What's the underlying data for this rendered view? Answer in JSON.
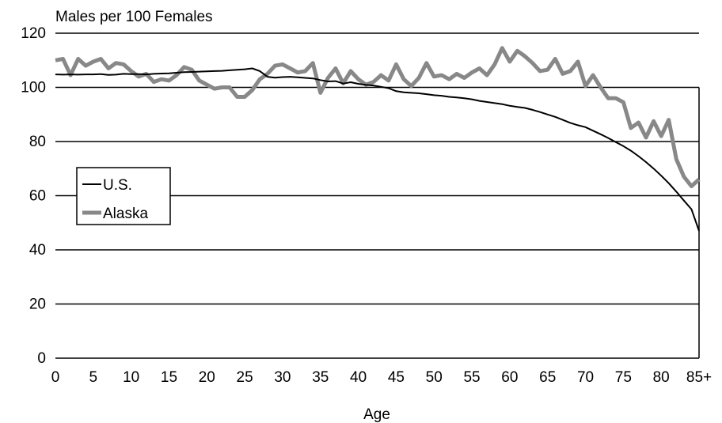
{
  "chart_data": {
    "type": "line",
    "title": "",
    "ylabel": "Males per 100 Females",
    "xlabel": "Age",
    "ylim": [
      0,
      120
    ],
    "yticks": [
      0,
      20,
      40,
      60,
      80,
      100,
      120
    ],
    "xticks": [
      "0",
      "5",
      "10",
      "15",
      "20",
      "25",
      "30",
      "35",
      "40",
      "45",
      "50",
      "55",
      "60",
      "65",
      "70",
      "75",
      "80",
      "85+"
    ],
    "grid": true,
    "legend": "left",
    "x": [
      0,
      1,
      2,
      3,
      4,
      5,
      6,
      7,
      8,
      9,
      10,
      11,
      12,
      13,
      14,
      15,
      16,
      17,
      18,
      19,
      20,
      21,
      22,
      23,
      24,
      25,
      26,
      27,
      28,
      29,
      30,
      31,
      32,
      33,
      34,
      35,
      36,
      37,
      38,
      39,
      40,
      41,
      42,
      43,
      44,
      45,
      46,
      47,
      48,
      49,
      50,
      51,
      52,
      53,
      54,
      55,
      56,
      57,
      58,
      59,
      60,
      61,
      62,
      63,
      64,
      65,
      66,
      67,
      68,
      69,
      70,
      71,
      72,
      73,
      74,
      75,
      76,
      77,
      78,
      79,
      80,
      81,
      82,
      83,
      84,
      85
    ],
    "series": [
      {
        "name": "U.S.",
        "color": "#000000",
        "values": [
          104.8,
          104.7,
          104.8,
          104.7,
          104.8,
          104.8,
          104.9,
          104.6,
          104.7,
          105.0,
          104.9,
          104.9,
          104.8,
          105.0,
          105.1,
          105.2,
          105.4,
          105.6,
          105.7,
          105.8,
          105.9,
          106.0,
          106.1,
          106.3,
          106.5,
          106.7,
          107.0,
          106.0,
          103.9,
          103.6,
          103.8,
          103.9,
          103.7,
          103.5,
          103.3,
          102.7,
          102.2,
          102.3,
          101.4,
          101.9,
          101.3,
          100.9,
          100.7,
          100.2,
          99.7,
          98.6,
          98.2,
          98.0,
          97.8,
          97.5,
          97.1,
          96.9,
          96.5,
          96.3,
          96.0,
          95.6,
          95.0,
          94.6,
          94.2,
          93.8,
          93.2,
          92.8,
          92.4,
          91.7,
          90.9,
          90.0,
          89.1,
          88.0,
          86.9,
          86.0,
          85.3,
          84.0,
          82.7,
          81.3,
          79.8,
          78.3,
          76.6,
          74.6,
          72.4,
          70.0,
          67.4,
          64.6,
          61.5,
          58.2,
          55.0,
          47.0
        ]
      },
      {
        "name": "Alaska",
        "color": "#888888",
        "values": [
          110,
          110.5,
          104.5,
          110.5,
          108.0,
          109.5,
          110.5,
          107.0,
          109.0,
          108.5,
          106.0,
          104.0,
          105.0,
          102.0,
          103.0,
          102.5,
          104.5,
          107.5,
          106.5,
          102.5,
          101.0,
          99.5,
          100.0,
          100.0,
          96.5,
          96.5,
          99.0,
          103.0,
          105.0,
          108.0,
          108.5,
          107.0,
          105.5,
          106.0,
          109.0,
          98.0,
          103.5,
          107.0,
          101.5,
          106.0,
          103.0,
          101.0,
          102.0,
          104.5,
          102.5,
          108.5,
          103.0,
          100.5,
          103.5,
          109.0,
          104.0,
          104.5,
          103.0,
          105.0,
          103.5,
          105.5,
          107.0,
          104.5,
          108.5,
          114.5,
          109.5,
          113.5,
          111.5,
          109.0,
          106.0,
          106.5,
          110.5,
          105.0,
          106.0,
          109.5,
          100.5,
          104.5,
          100.0,
          96.0,
          96.0,
          94.5,
          85.0,
          87.0,
          81.5,
          87.5,
          82.0,
          88.0,
          73.5,
          67.0,
          63.5,
          66.0
        ]
      }
    ]
  }
}
